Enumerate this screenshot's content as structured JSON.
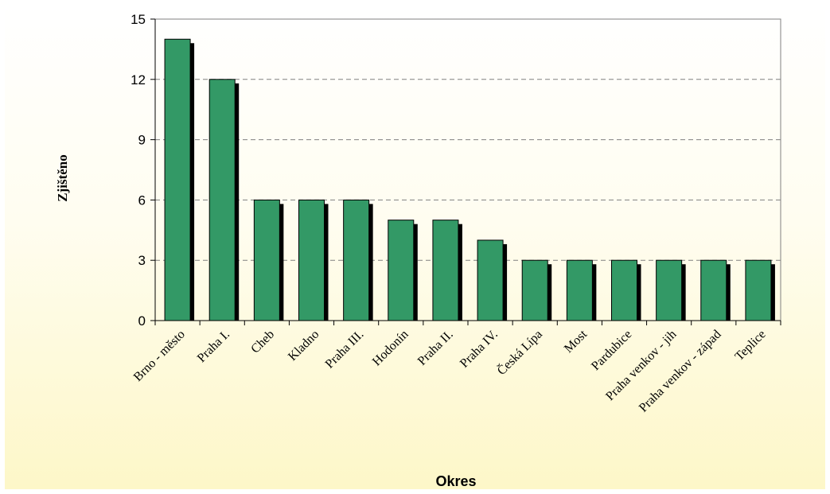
{
  "chart_data": {
    "type": "bar",
    "title": "",
    "xlabel": "Okres",
    "ylabel": "Zjištěno",
    "ylim": [
      0,
      15
    ],
    "yticks": [
      0,
      3,
      6,
      9,
      12,
      15
    ],
    "grid": true,
    "legend": "none",
    "categories": [
      "Brno - město",
      "Praha I.",
      "Cheb",
      "Kladno",
      "Praha III.",
      "Hodonín",
      "Praha II.",
      "Praha IV.",
      "Česká Lípa",
      "Most",
      "Pardubice",
      "Praha venkov - jih",
      "Praha venkov - západ",
      "Teplice"
    ],
    "values": [
      14,
      12,
      6,
      6,
      6,
      5,
      5,
      4,
      3,
      3,
      3,
      3,
      3,
      3
    ],
    "colors": {
      "bar": "#339966",
      "shadow": "#000000",
      "grid": "#808080"
    }
  }
}
